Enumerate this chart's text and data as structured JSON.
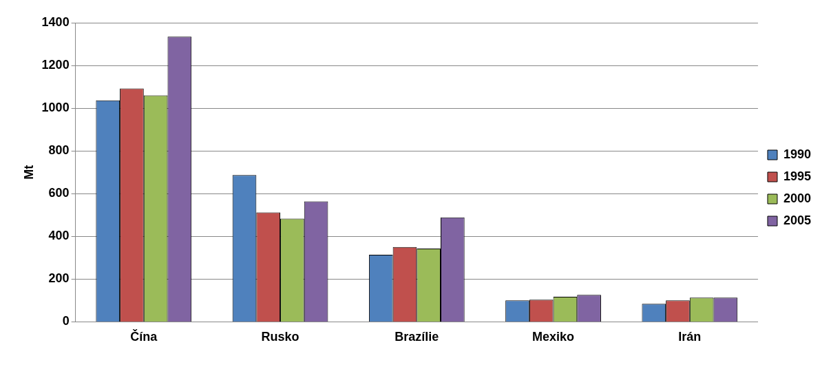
{
  "chart_data": {
    "type": "bar",
    "ylabel": "Mt",
    "categories": [
      "Čína",
      "Rusko",
      "Brazílie",
      "Mexiko",
      "Irán"
    ],
    "series": [
      {
        "name": "1990",
        "color": "#4f81bd",
        "values": [
          1037,
          687,
          314,
          100,
          84
        ]
      },
      {
        "name": "1995",
        "color": "#c0504d",
        "values": [
          1092,
          512,
          350,
          104,
          100
        ]
      },
      {
        "name": "2000",
        "color": "#9bbb59",
        "values": [
          1060,
          483,
          343,
          117,
          113
        ]
      },
      {
        "name": "2005",
        "color": "#8064a2",
        "values": [
          1335,
          564,
          489,
          126,
          113
        ]
      }
    ],
    "ylim": [
      0,
      1400
    ],
    "yticks": [
      0,
      200,
      400,
      600,
      800,
      1000,
      1200,
      1400
    ],
    "grid": "y",
    "legend": "right"
  }
}
